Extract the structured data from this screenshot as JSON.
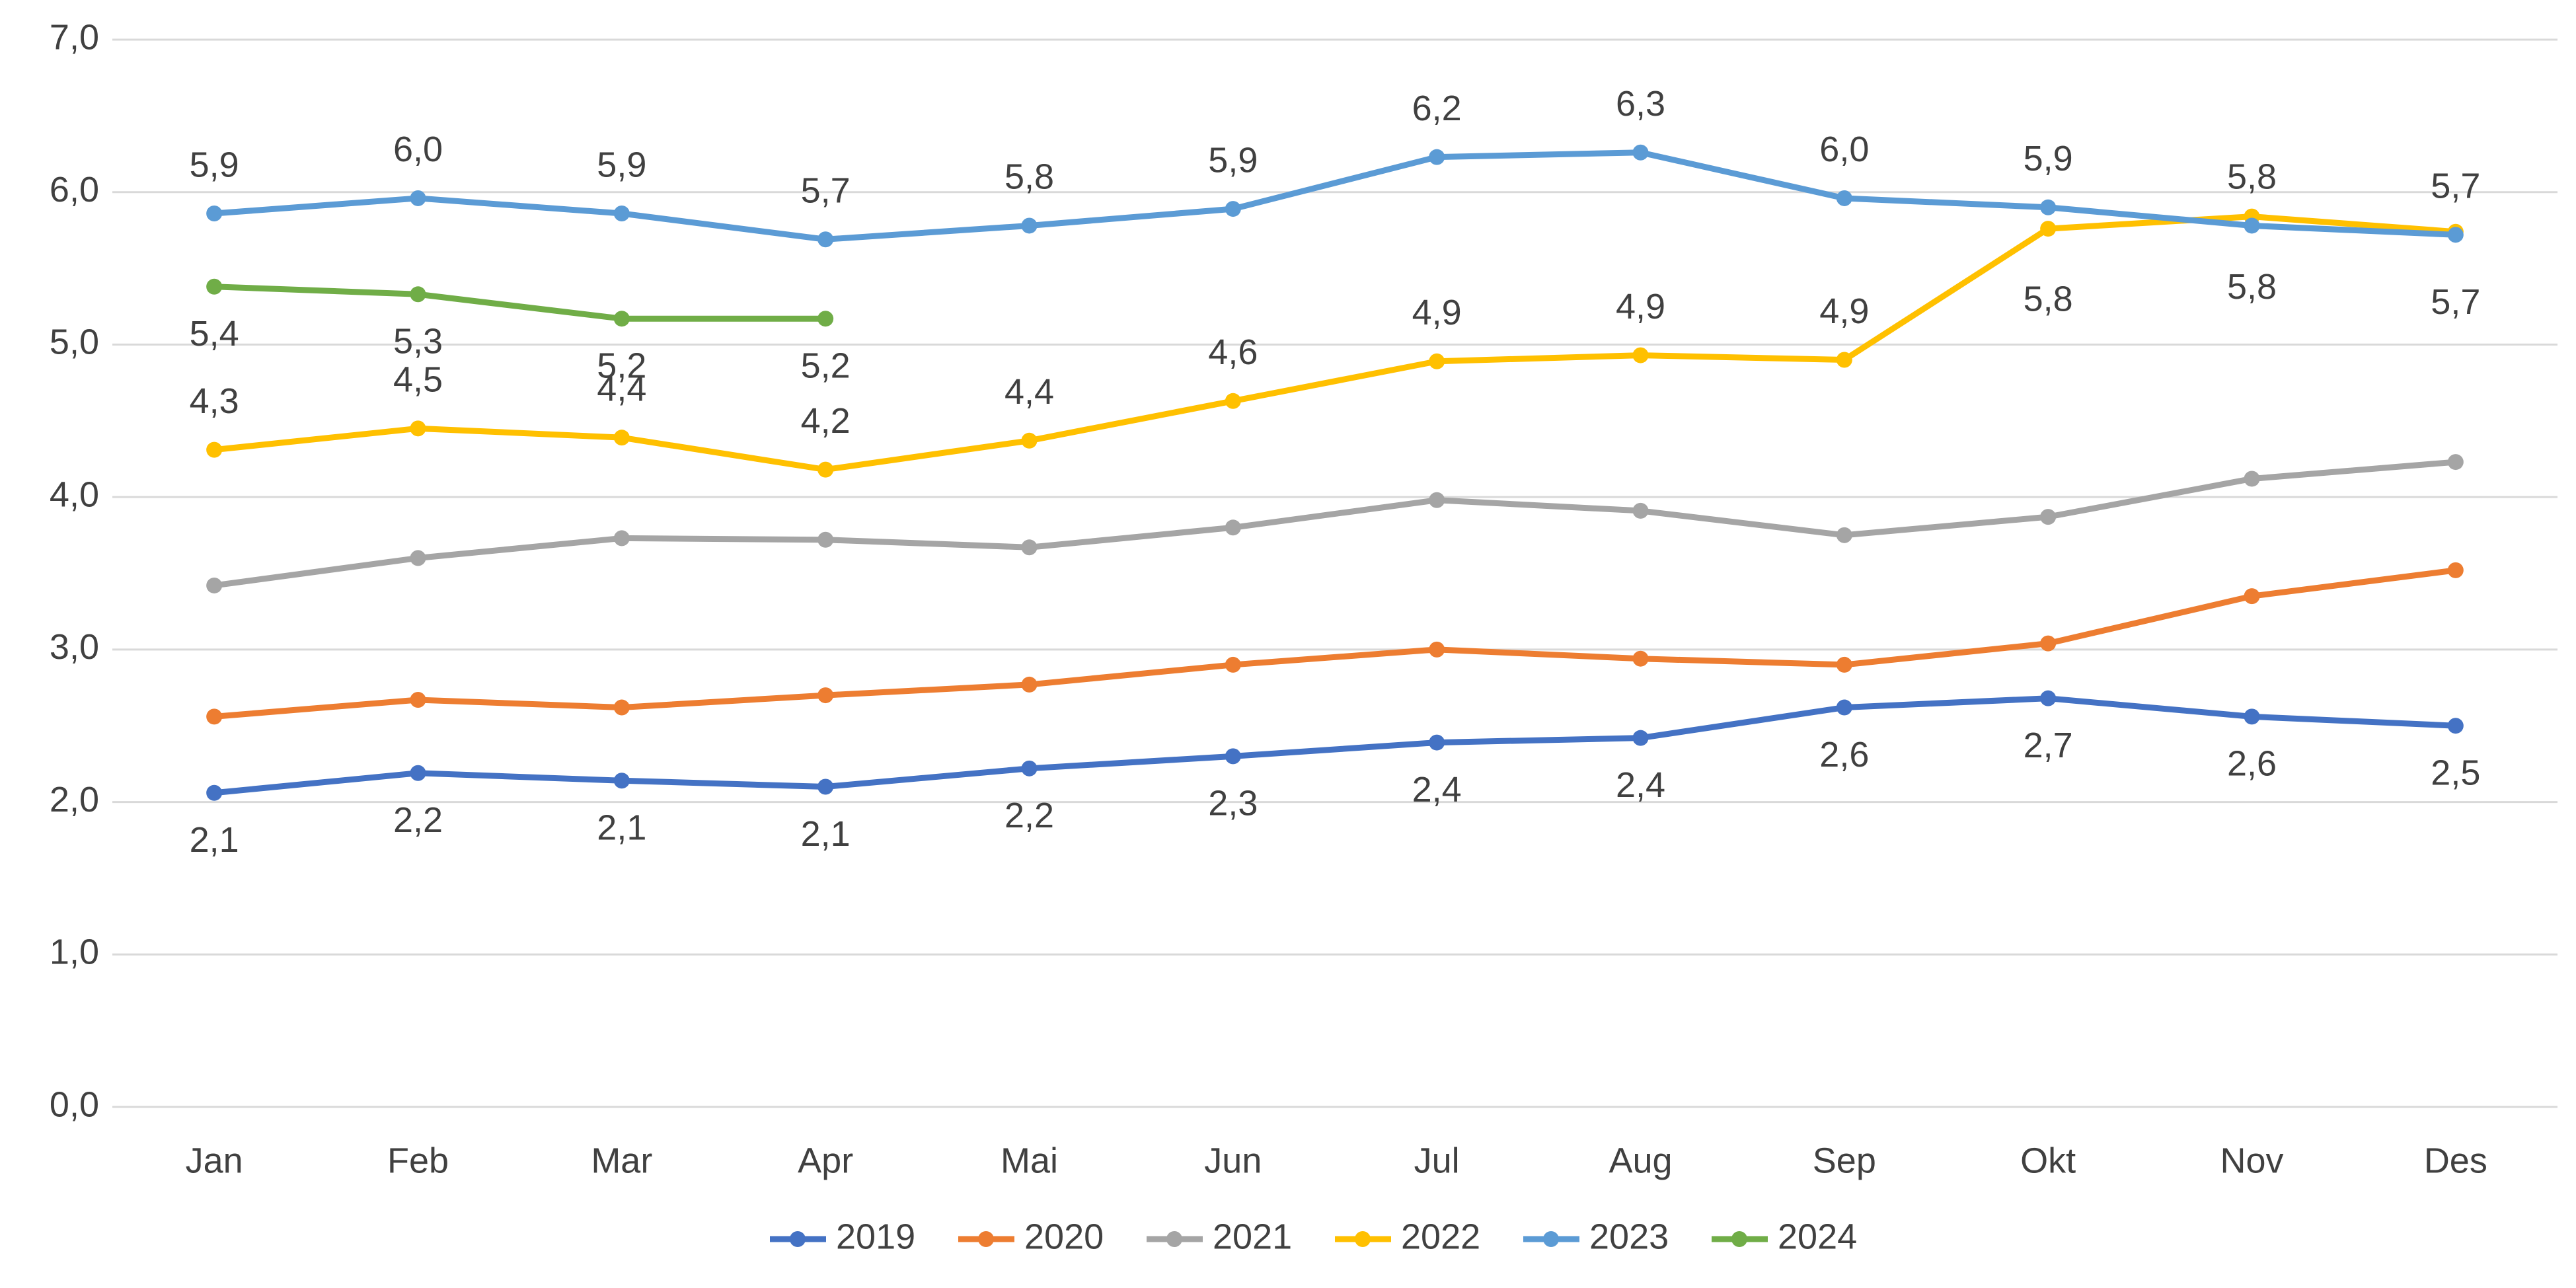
{
  "chart_data": {
    "type": "line",
    "categories": [
      "Jan",
      "Feb",
      "Mar",
      "Apr",
      "Mai",
      "Jun",
      "Jul",
      "Aug",
      "Sep",
      "Okt",
      "Nov",
      "Des"
    ],
    "series": [
      {
        "name": "2019",
        "color": "#4472c4",
        "values": [
          2.06,
          2.19,
          2.14,
          2.1,
          2.22,
          2.3,
          2.39,
          2.42,
          2.62,
          2.68,
          2.56,
          2.5
        ],
        "value_labels": [
          "2,1",
          "2,2",
          "2,1",
          "2,1",
          "2,2",
          "2,3",
          "2,4",
          "2,4",
          "2,6",
          "2,7",
          "2,6",
          "2,5"
        ]
      },
      {
        "name": "2020",
        "color": "#ed7d31",
        "values": [
          2.56,
          2.67,
          2.62,
          2.7,
          2.77,
          2.9,
          3.0,
          2.94,
          2.9,
          3.04,
          3.35,
          3.52
        ]
      },
      {
        "name": "2021",
        "color": "#a5a5a5",
        "values": [
          3.42,
          3.6,
          3.73,
          3.72,
          3.67,
          3.8,
          3.98,
          3.91,
          3.75,
          3.87,
          4.12,
          4.23
        ]
      },
      {
        "name": "2022",
        "color": "#ffc000",
        "values": [
          4.31,
          4.45,
          4.39,
          4.18,
          4.37,
          4.63,
          4.89,
          4.93,
          4.9,
          5.76,
          5.84,
          5.74
        ],
        "value_labels": [
          "4,3",
          "4,5",
          "4,4",
          "4,2",
          "4,4",
          "4,6",
          "4,9",
          "4,9",
          "4,9",
          "5,8",
          "5,8",
          "5,7"
        ]
      },
      {
        "name": "2023",
        "color": "#5b9bd5",
        "values": [
          5.86,
          5.96,
          5.86,
          5.69,
          5.78,
          5.89,
          6.23,
          6.26,
          5.96,
          5.9,
          5.78,
          5.72
        ],
        "value_labels": [
          "5,9",
          "6,0",
          "5,9",
          "5,7",
          "5,8",
          "5,9",
          "6,2",
          "6,3",
          "6,0",
          "5,9",
          "5,8",
          "5,7"
        ]
      },
      {
        "name": "2024",
        "color": "#70ad47",
        "values": [
          5.38,
          5.33,
          5.17,
          5.17,
          null,
          null,
          null,
          null,
          null,
          null,
          null,
          null
        ],
        "value_labels": [
          "5,4",
          "5,3",
          "5,2",
          "5,2",
          null,
          null,
          null,
          null,
          null,
          null,
          null,
          null
        ]
      }
    ],
    "ylim": [
      0,
      7
    ],
    "yticks": [
      {
        "value": 0,
        "label": "0,0"
      },
      {
        "value": 1,
        "label": "1,0"
      },
      {
        "value": 2,
        "label": "2,0"
      },
      {
        "value": 3,
        "label": "3,0"
      },
      {
        "value": 4,
        "label": "4,0"
      },
      {
        "value": 5,
        "label": "5,0"
      },
      {
        "value": 6,
        "label": "6,0"
      },
      {
        "value": 7,
        "label": "7,0"
      }
    ],
    "grid": true,
    "legend": "bottom"
  }
}
